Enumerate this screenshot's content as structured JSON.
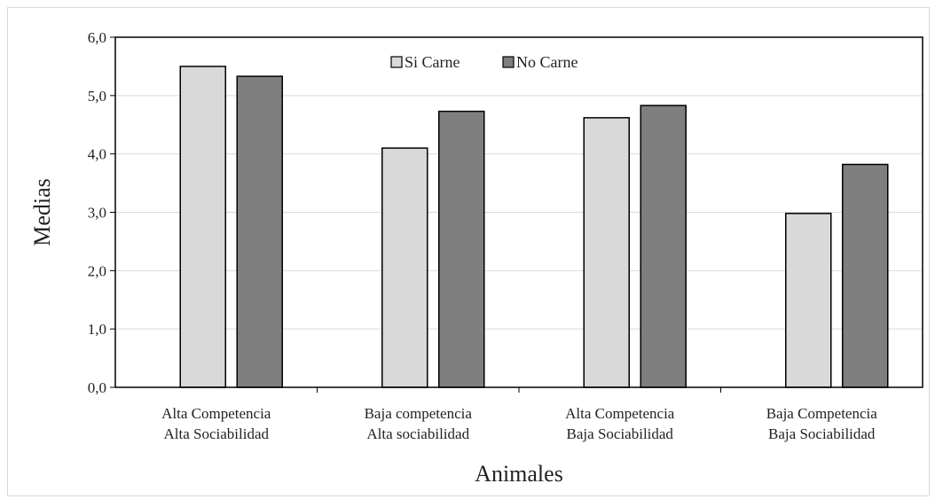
{
  "chart_data": {
    "type": "bar",
    "title": "",
    "xlabel": "Animales",
    "ylabel": "Medias",
    "ylim": [
      0,
      6
    ],
    "yticks": [
      "0,0",
      "1,0",
      "2,0",
      "3,0",
      "4,0",
      "5,0",
      "6,0"
    ],
    "categories": [
      [
        "Alta Competencia",
        "Alta Sociabilidad"
      ],
      [
        "Baja competencia",
        "Alta sociabilidad"
      ],
      [
        "Alta Competencia",
        "Baja Sociabilidad"
      ],
      [
        "Baja Competencia",
        "Baja Sociabilidad"
      ]
    ],
    "series": [
      {
        "name": "Si Carne",
        "color": "#d9d9d9",
        "values": [
          5.5,
          4.1,
          4.62,
          2.98
        ]
      },
      {
        "name": "No Carne",
        "color": "#7f7f7f",
        "values": [
          5.33,
          4.73,
          4.83,
          3.82
        ]
      }
    ],
    "grid": true,
    "legend_position": "top-center"
  }
}
